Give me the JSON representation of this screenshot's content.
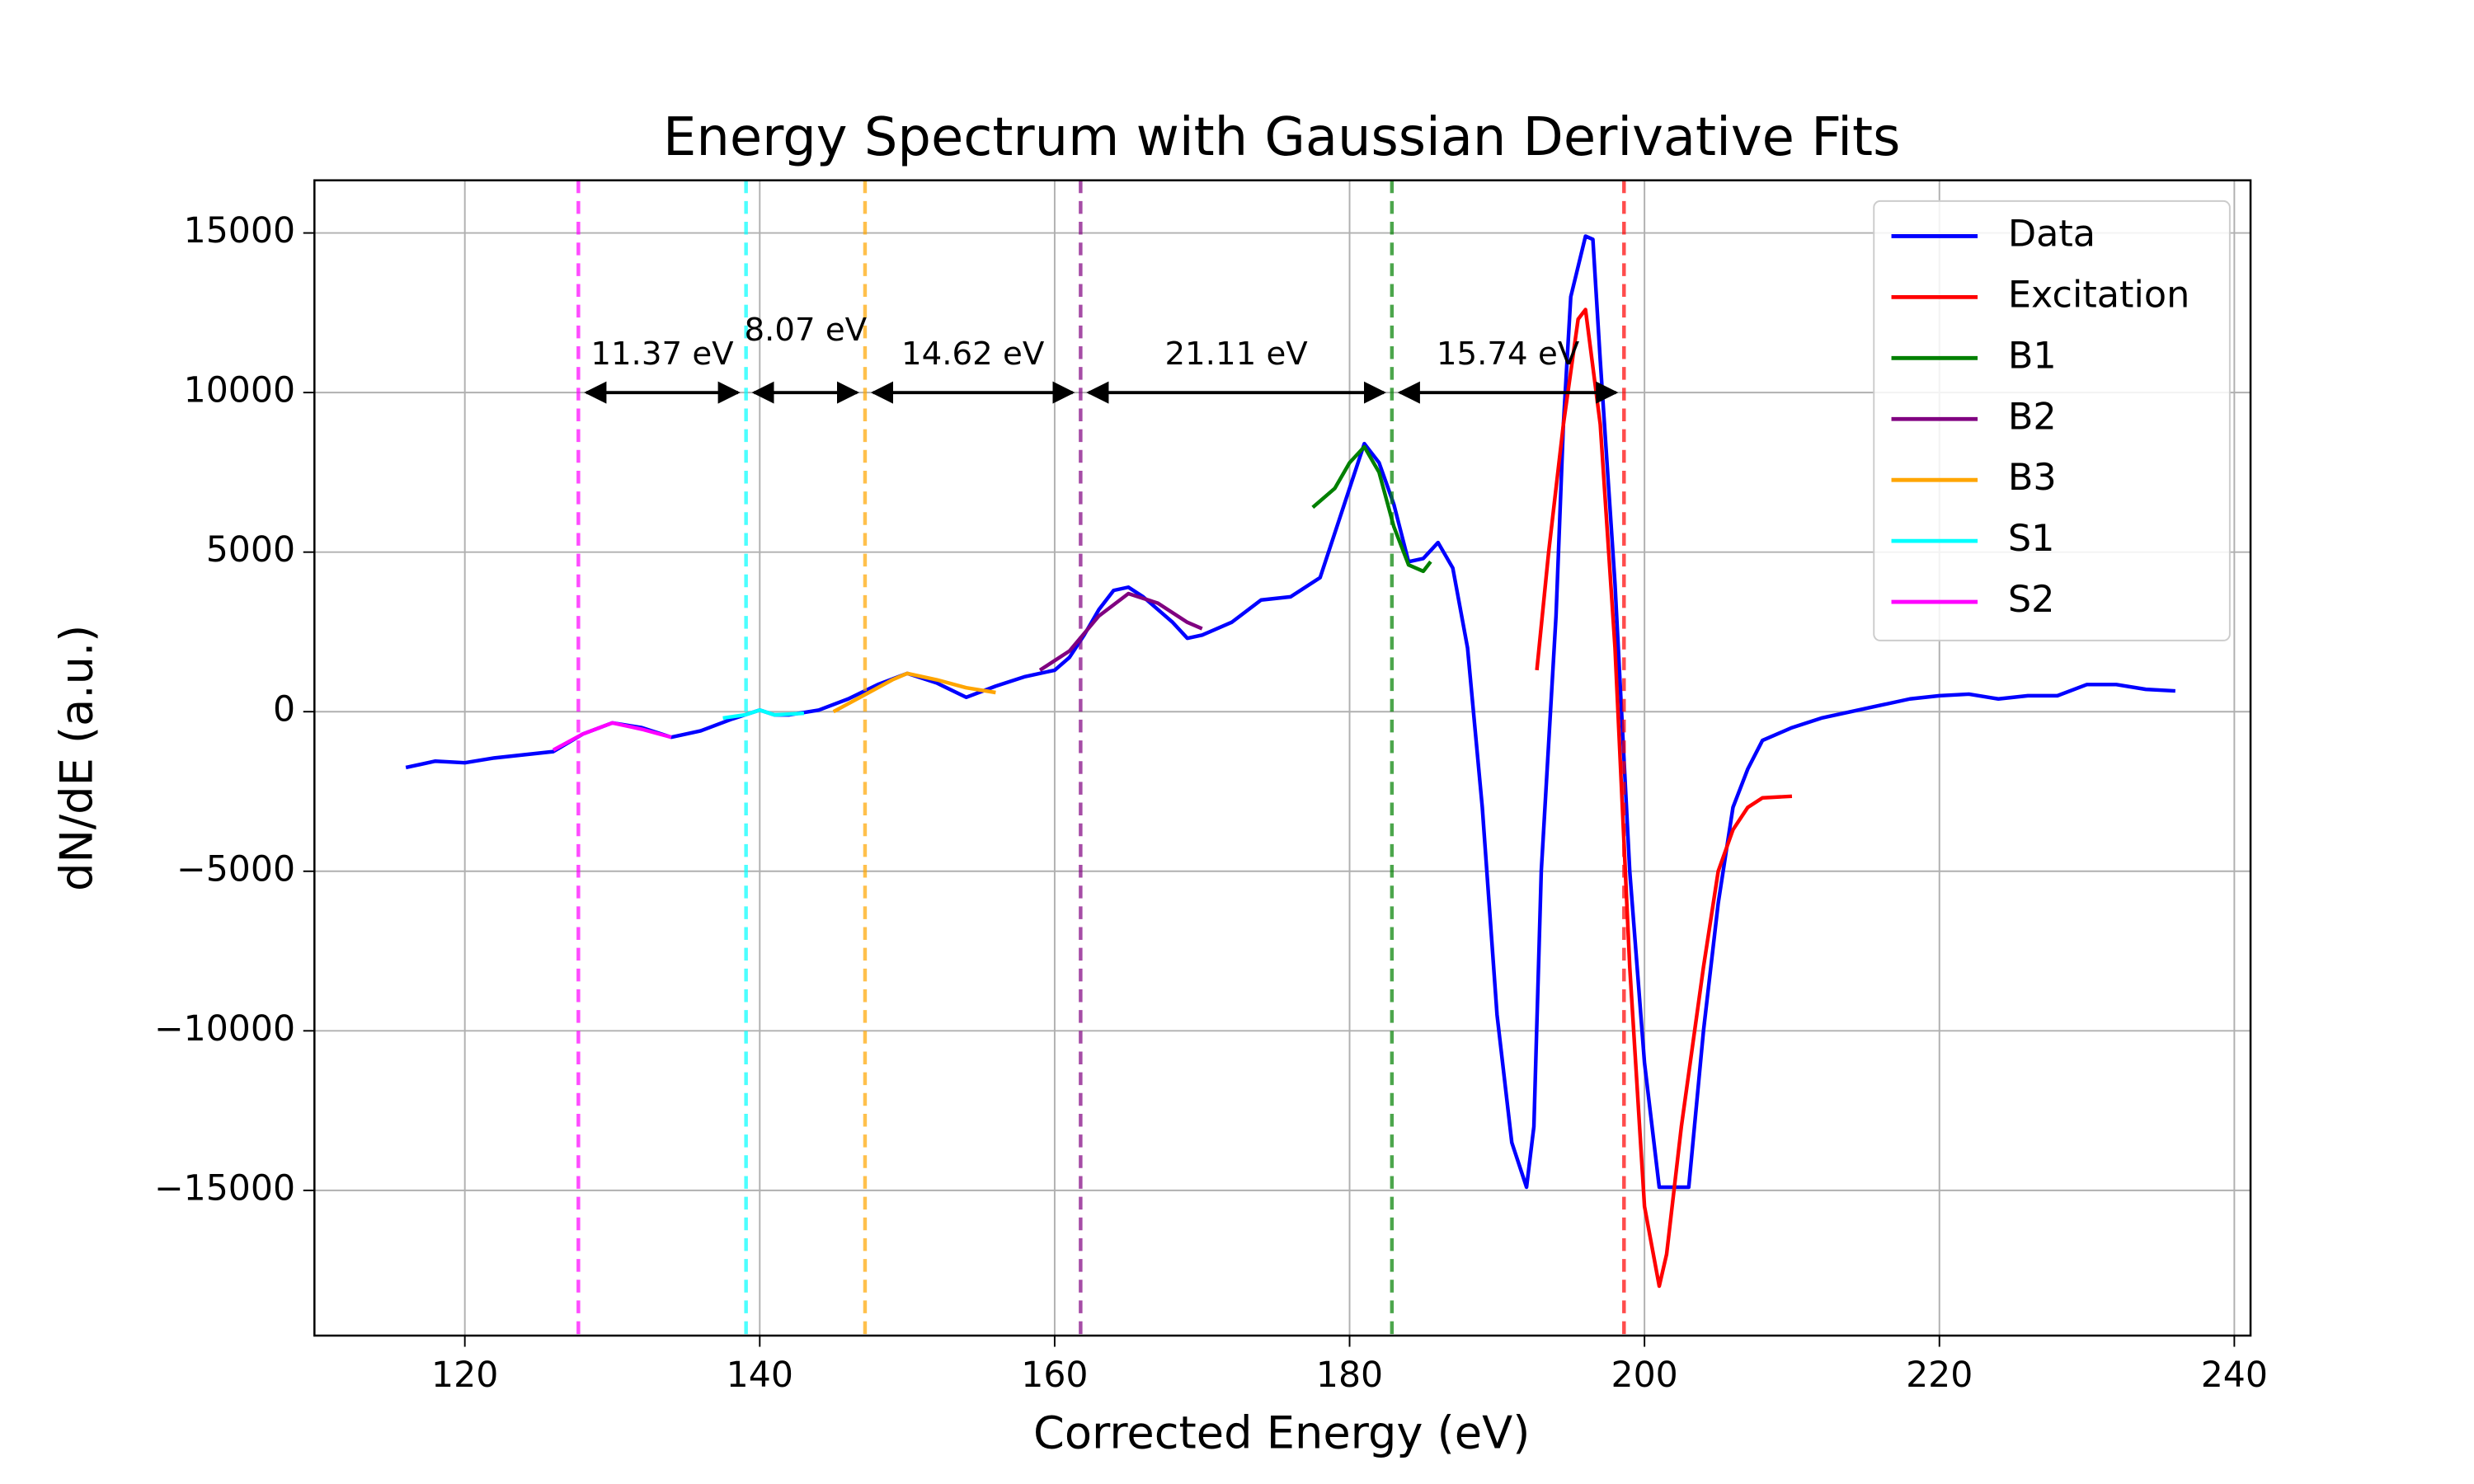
{
  "chart_data": {
    "type": "line",
    "title": "Energy Spectrum with Gaussian Derivative Fits",
    "xlabel": "Corrected Energy (eV)",
    "ylabel": "dN/dE (a.u.)",
    "xlim": [
      109.8,
      241.1
    ],
    "ylim": [
      -19550,
      16650
    ],
    "xticks": [
      120,
      140,
      160,
      180,
      200,
      220,
      240
    ],
    "yticks": [
      {
        "value": -15000,
        "label": "−15000"
      },
      {
        "value": -10000,
        "label": "−10000"
      },
      {
        "value": -5000,
        "label": "−5000"
      },
      0,
      5000,
      10000,
      15000
    ],
    "grid": true,
    "legend": "upper right",
    "series": [
      {
        "name": "Data",
        "color": "#0000ff",
        "x": [
          116,
          118,
          120,
          122,
          124,
          126,
          128,
          130,
          132,
          134,
          136,
          138,
          140,
          141,
          142,
          144,
          146,
          148,
          150,
          152,
          154,
          156,
          158,
          160,
          161,
          162,
          163,
          164,
          165,
          166,
          168,
          169,
          170,
          172,
          174,
          176,
          178,
          180,
          181,
          182,
          183,
          184,
          185,
          186,
          187,
          188,
          189,
          190,
          191,
          192,
          192.5,
          193,
          194,
          194.5,
          195,
          196,
          196.5,
          197,
          198,
          199,
          200,
          201,
          203,
          204,
          205,
          206,
          207,
          208,
          210,
          212,
          214,
          216,
          218,
          220,
          222,
          224,
          226,
          228,
          230,
          232,
          234,
          236
        ],
        "values": [
          -1750,
          -1550,
          -1600,
          -1450,
          -1350,
          -1250,
          -700,
          -350,
          -500,
          -800,
          -600,
          -250,
          50,
          -100,
          -100,
          50,
          400,
          850,
          1200,
          900,
          450,
          800,
          1100,
          1300,
          1700,
          2400,
          3200,
          3800,
          3900,
          3600,
          2800,
          2300,
          2400,
          2800,
          3500,
          3600,
          4200,
          7000,
          8400,
          7800,
          6500,
          4700,
          4800,
          5300,
          4500,
          2000,
          -3000,
          -9500,
          -13500,
          -14900,
          -13000,
          -5000,
          3000,
          9000,
          13000,
          14900,
          14800,
          11000,
          4000,
          -5000,
          -11000,
          -14900,
          -14900,
          -10000,
          -6000,
          -3000,
          -1800,
          -900,
          -500,
          -200,
          0,
          200,
          400,
          500,
          550,
          400,
          500,
          500,
          850,
          850,
          700,
          650
        ]
      },
      {
        "name": "Excitation",
        "color": "#ff0000",
        "x": [
          192.7,
          193.5,
          194.5,
          195.5,
          196,
          197,
          198,
          199,
          200,
          201,
          201.5,
          202.5,
          204,
          205,
          206,
          207,
          208,
          210
        ],
        "values": [
          1300,
          5000,
          9000,
          12300,
          12600,
          9000,
          2000,
          -8000,
          -15500,
          -18000,
          -17000,
          -13000,
          -8000,
          -5000,
          -3700,
          -3000,
          -2700,
          -2650
        ]
      },
      {
        "name": "B1",
        "color": "#008000",
        "x": [
          177.5,
          179,
          180,
          181,
          182,
          183,
          184,
          185,
          185.5
        ],
        "values": [
          6400,
          7000,
          7800,
          8300,
          7500,
          5800,
          4600,
          4400,
          4700
        ]
      },
      {
        "name": "B2",
        "color": "#800080",
        "x": [
          159,
          161,
          163,
          165,
          167,
          169,
          170
        ],
        "values": [
          1300,
          1900,
          3000,
          3700,
          3400,
          2800,
          2600
        ]
      },
      {
        "name": "B3",
        "color": "#ffa500",
        "x": [
          145,
          147,
          149,
          150,
          152,
          154,
          156
        ],
        "values": [
          0,
          500,
          1000,
          1200,
          1000,
          750,
          600
        ]
      },
      {
        "name": "S1",
        "color": "#00ffff",
        "x": [
          137.5,
          139,
          140,
          141,
          143
        ],
        "values": [
          -200,
          -100,
          50,
          -100,
          -50
        ]
      },
      {
        "name": "S2",
        "color": "#ff00ff",
        "x": [
          126,
          128,
          130,
          132,
          134
        ],
        "values": [
          -1200,
          -700,
          -350,
          -550,
          -800
        ]
      }
    ],
    "vlines": [
      {
        "x": 127.7,
        "color": "#ff00ff"
      },
      {
        "x": 139.07,
        "color": "#00ffff"
      },
      {
        "x": 147.14,
        "color": "#ffa500"
      },
      {
        "x": 161.76,
        "color": "#800080"
      },
      {
        "x": 182.87,
        "color": "#008000"
      },
      {
        "x": 198.61,
        "color": "#ff0000"
      }
    ],
    "annotations": [
      {
        "text": "11.37 eV",
        "x_start": 127.7,
        "x_end": 139.07,
        "y": 10000
      },
      {
        "text": "8.07 eV",
        "x_start": 139.07,
        "x_end": 147.14,
        "y": 10000
      },
      {
        "text": "14.62 eV",
        "x_start": 147.14,
        "x_end": 161.76,
        "y": 10000
      },
      {
        "text": "21.11 eV",
        "x_start": 161.76,
        "x_end": 182.87,
        "y": 10000
      },
      {
        "text": "15.74 eV",
        "x_start": 182.87,
        "x_end": 198.61,
        "y": 10000
      }
    ]
  }
}
